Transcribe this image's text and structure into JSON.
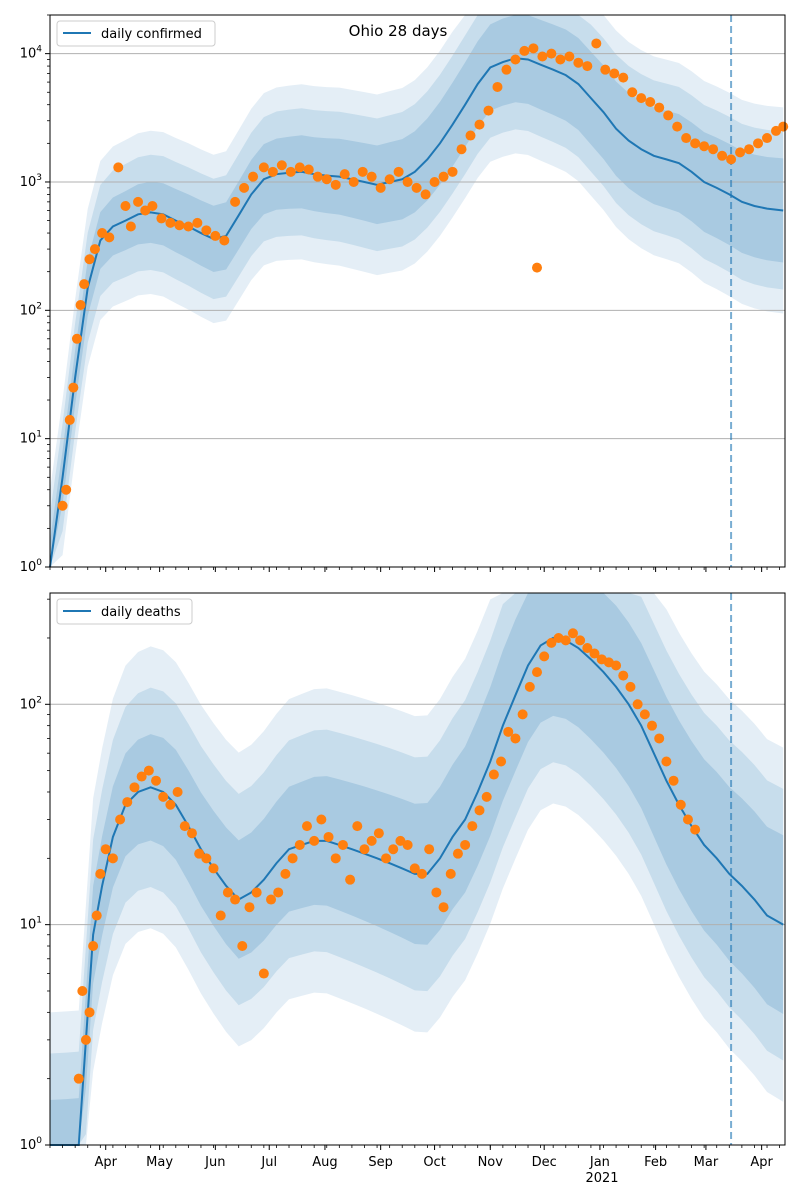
{
  "title": "Ohio 28 days",
  "colors": {
    "model": "#1f77b4",
    "observed": "#ff7f0e",
    "band": "#1f77b4",
    "grid": "#b0b0b0",
    "vline": "#1f77b4"
  },
  "chart_data": [
    {
      "type": "line",
      "title": "Ohio 28 days",
      "xlabel": "",
      "ylabel": "",
      "yscale": "log",
      "ylim": [
        1,
        20000
      ],
      "xlim": [
        "2020-03-01",
        "2021-04-14"
      ],
      "grid": true,
      "legend_position": "top-left",
      "y_ticks": [
        "10^0",
        "10^1",
        "10^2",
        "10^3",
        "10^4"
      ],
      "cutoff_line": "2021-03-15",
      "series": [
        {
          "name": "daily confirmed",
          "style": "line",
          "x": [
            "2020-03-01",
            "2020-03-08",
            "2020-03-15",
            "2020-03-22",
            "2020-03-29",
            "2020-04-05",
            "2020-04-12",
            "2020-04-19",
            "2020-04-26",
            "2020-05-03",
            "2020-05-10",
            "2020-05-17",
            "2020-05-24",
            "2020-05-31",
            "2020-06-07",
            "2020-06-14",
            "2020-06-21",
            "2020-06-28",
            "2020-07-05",
            "2020-07-12",
            "2020-07-19",
            "2020-07-26",
            "2020-08-02",
            "2020-08-09",
            "2020-08-16",
            "2020-08-23",
            "2020-08-30",
            "2020-09-06",
            "2020-09-13",
            "2020-09-20",
            "2020-09-27",
            "2020-10-04",
            "2020-10-11",
            "2020-10-18",
            "2020-10-25",
            "2020-11-01",
            "2020-11-08",
            "2020-11-15",
            "2020-11-22",
            "2020-11-29",
            "2020-12-06",
            "2020-12-13",
            "2020-12-20",
            "2020-12-27",
            "2021-01-03",
            "2021-01-10",
            "2021-01-17",
            "2021-01-24",
            "2021-01-31",
            "2021-02-07",
            "2021-02-14",
            "2021-02-21",
            "2021-02-28",
            "2021-03-07",
            "2021-03-14",
            "2021-03-21",
            "2021-03-28",
            "2021-04-04",
            "2021-04-13"
          ],
          "values": [
            1,
            5,
            30,
            150,
            350,
            450,
            500,
            560,
            580,
            560,
            500,
            450,
            400,
            360,
            380,
            550,
            800,
            1050,
            1150,
            1180,
            1200,
            1150,
            1120,
            1100,
            1050,
            1000,
            950,
            1000,
            1050,
            1200,
            1500,
            2000,
            2800,
            4000,
            5800,
            7800,
            8600,
            9200,
            9000,
            8200,
            7500,
            6800,
            5800,
            4500,
            3500,
            2600,
            2100,
            1800,
            1600,
            1500,
            1400,
            1200,
            1000,
            900,
            800,
            700,
            650,
            620,
            600
          ]
        },
        {
          "name": "",
          "style": "markers",
          "x": [
            "2020-03-08",
            "2020-03-10",
            "2020-03-12",
            "2020-03-14",
            "2020-03-16",
            "2020-03-18",
            "2020-03-20",
            "2020-03-23",
            "2020-03-26",
            "2020-03-30",
            "2020-04-03",
            "2020-04-08",
            "2020-04-12",
            "2020-04-15",
            "2020-04-19",
            "2020-04-23",
            "2020-04-27",
            "2020-05-02",
            "2020-05-07",
            "2020-05-12",
            "2020-05-17",
            "2020-05-22",
            "2020-05-27",
            "2020-06-01",
            "2020-06-06",
            "2020-06-12",
            "2020-06-17",
            "2020-06-22",
            "2020-06-28",
            "2020-07-03",
            "2020-07-08",
            "2020-07-13",
            "2020-07-18",
            "2020-07-23",
            "2020-07-28",
            "2020-08-02",
            "2020-08-07",
            "2020-08-12",
            "2020-08-17",
            "2020-08-22",
            "2020-08-27",
            "2020-09-01",
            "2020-09-06",
            "2020-09-11",
            "2020-09-16",
            "2020-09-21",
            "2020-09-26",
            "2020-10-01",
            "2020-10-06",
            "2020-10-11",
            "2020-10-16",
            "2020-10-21",
            "2020-10-26",
            "2020-10-31",
            "2020-11-05",
            "2020-11-10",
            "2020-11-15",
            "2020-11-20",
            "2020-11-25",
            "2020-11-27",
            "2020-11-30",
            "2020-12-05",
            "2020-12-10",
            "2020-12-15",
            "2020-12-20",
            "2020-12-25",
            "2020-12-30",
            "2021-01-04",
            "2021-01-09",
            "2021-01-14",
            "2021-01-19",
            "2021-01-24",
            "2021-01-29",
            "2021-02-03",
            "2021-02-08",
            "2021-02-13",
            "2021-02-18",
            "2021-02-23",
            "2021-02-28",
            "2021-03-05",
            "2021-03-10",
            "2021-03-15",
            "2021-03-20",
            "2021-03-25",
            "2021-03-30",
            "2021-04-04",
            "2021-04-09",
            "2021-04-13"
          ],
          "values": [
            3,
            4,
            14,
            25,
            60,
            110,
            160,
            250,
            300,
            400,
            370,
            1300,
            650,
            450,
            700,
            600,
            650,
            520,
            480,
            460,
            450,
            480,
            420,
            380,
            350,
            700,
            900,
            1100,
            1300,
            1200,
            1350,
            1200,
            1300,
            1250,
            1100,
            1050,
            950,
            1150,
            1000,
            1200,
            1100,
            900,
            1050,
            1200,
            1000,
            900,
            800,
            1000,
            1100,
            1200,
            1800,
            2300,
            2800,
            3600,
            5500,
            7500,
            9000,
            10500,
            11000,
            215,
            9500,
            10000,
            9000,
            9500,
            8500,
            8000,
            12000,
            7500,
            7000,
            6500,
            5000,
            4500,
            4200,
            3800,
            3300,
            2700,
            2200,
            2000,
            1900,
            1800,
            1600,
            1500,
            1700,
            1800,
            2000,
            2200,
            2500,
            2700
          ]
        }
      ]
    },
    {
      "type": "line",
      "title": "",
      "xlabel": "",
      "ylabel": "",
      "yscale": "log",
      "ylim": [
        1,
        320
      ],
      "xlim": [
        "2020-03-01",
        "2021-04-14"
      ],
      "grid": true,
      "legend_position": "top-left",
      "y_ticks": [
        "10^0",
        "10^1",
        "10^2"
      ],
      "x_tick_labels": [
        "Apr",
        "May",
        "Jun",
        "Jul",
        "Aug",
        "Sep",
        "Oct",
        "Nov",
        "Dec",
        "Jan",
        "Feb",
        "Mar",
        "Apr"
      ],
      "x_tick_dates": [
        "2020-04-01",
        "2020-05-01",
        "2020-06-01",
        "2020-07-01",
        "2020-08-01",
        "2020-09-01",
        "2020-10-01",
        "2020-11-01",
        "2020-12-01",
        "2021-01-01",
        "2021-02-01",
        "2021-03-01",
        "2021-04-01"
      ],
      "x_year_label": "2021",
      "cutoff_line": "2021-03-15",
      "series": [
        {
          "name": "daily deaths",
          "style": "line",
          "x": [
            "2020-03-01",
            "2020-03-10",
            "2020-03-17",
            "2020-03-21",
            "2020-03-25",
            "2020-03-30",
            "2020-04-05",
            "2020-04-12",
            "2020-04-19",
            "2020-04-26",
            "2020-05-03",
            "2020-05-10",
            "2020-05-17",
            "2020-05-24",
            "2020-05-31",
            "2020-06-07",
            "2020-06-14",
            "2020-06-21",
            "2020-06-28",
            "2020-07-05",
            "2020-07-12",
            "2020-07-19",
            "2020-07-26",
            "2020-08-02",
            "2020-08-09",
            "2020-08-16",
            "2020-08-23",
            "2020-08-30",
            "2020-09-06",
            "2020-09-13",
            "2020-09-20",
            "2020-09-27",
            "2020-10-04",
            "2020-10-11",
            "2020-10-18",
            "2020-10-25",
            "2020-11-01",
            "2020-11-08",
            "2020-11-15",
            "2020-11-22",
            "2020-11-29",
            "2020-12-06",
            "2020-12-13",
            "2020-12-20",
            "2020-12-27",
            "2021-01-03",
            "2021-01-10",
            "2021-01-17",
            "2021-01-24",
            "2021-01-31",
            "2021-02-07",
            "2021-02-14",
            "2021-02-21",
            "2021-02-28",
            "2021-03-07",
            "2021-03-14",
            "2021-03-21",
            "2021-03-28",
            "2021-04-04",
            "2021-04-13"
          ],
          "values": [
            1,
            1,
            1,
            3,
            9,
            15,
            25,
            35,
            40,
            42,
            40,
            35,
            28,
            22,
            18,
            15,
            13,
            14,
            16,
            19,
            22,
            23,
            24,
            24,
            23,
            22,
            21,
            20,
            19,
            18,
            17,
            17,
            20,
            25,
            30,
            40,
            55,
            80,
            110,
            150,
            185,
            200,
            195,
            180,
            160,
            140,
            120,
            100,
            80,
            60,
            45,
            35,
            28,
            23,
            20,
            17,
            15,
            13,
            11,
            10
          ]
        },
        {
          "name": "",
          "style": "markers",
          "x": [
            "2020-03-17",
            "2020-03-19",
            "2020-03-21",
            "2020-03-23",
            "2020-03-25",
            "2020-03-27",
            "2020-03-29",
            "2020-04-01",
            "2020-04-05",
            "2020-04-09",
            "2020-04-13",
            "2020-04-17",
            "2020-04-21",
            "2020-04-25",
            "2020-04-29",
            "2020-05-03",
            "2020-05-07",
            "2020-05-11",
            "2020-05-15",
            "2020-05-19",
            "2020-05-23",
            "2020-05-27",
            "2020-05-31",
            "2020-06-04",
            "2020-06-08",
            "2020-06-12",
            "2020-06-16",
            "2020-06-20",
            "2020-06-24",
            "2020-06-28",
            "2020-07-02",
            "2020-07-06",
            "2020-07-10",
            "2020-07-14",
            "2020-07-18",
            "2020-07-22",
            "2020-07-26",
            "2020-07-30",
            "2020-08-03",
            "2020-08-07",
            "2020-08-11",
            "2020-08-15",
            "2020-08-19",
            "2020-08-23",
            "2020-08-27",
            "2020-08-31",
            "2020-09-04",
            "2020-09-08",
            "2020-09-12",
            "2020-09-16",
            "2020-09-20",
            "2020-09-24",
            "2020-09-28",
            "2020-10-02",
            "2020-10-06",
            "2020-10-10",
            "2020-10-14",
            "2020-10-18",
            "2020-10-22",
            "2020-10-26",
            "2020-10-30",
            "2020-11-03",
            "2020-11-07",
            "2020-11-11",
            "2020-11-15",
            "2020-11-19",
            "2020-11-23",
            "2020-11-27",
            "2020-12-01",
            "2020-12-05",
            "2020-12-09",
            "2020-12-13",
            "2020-12-17",
            "2020-12-21",
            "2020-12-25",
            "2020-12-29",
            "2021-01-02",
            "2021-01-06",
            "2021-01-10",
            "2021-01-14",
            "2021-01-18",
            "2021-01-22",
            "2021-01-26",
            "2021-01-30",
            "2021-02-03",
            "2021-02-07",
            "2021-02-11",
            "2021-02-15",
            "2021-02-19",
            "2021-02-23"
          ],
          "values": [
            2,
            5,
            3,
            4,
            8,
            11,
            17,
            22,
            20,
            30,
            36,
            42,
            47,
            50,
            45,
            38,
            35,
            40,
            28,
            26,
            21,
            20,
            18,
            11,
            14,
            13,
            8,
            12,
            14,
            6,
            13,
            14,
            17,
            20,
            23,
            28,
            24,
            30,
            25,
            20,
            23,
            16,
            28,
            22,
            24,
            26,
            20,
            22,
            24,
            23,
            18,
            17,
            22,
            14,
            12,
            17,
            21,
            23,
            28,
            33,
            38,
            48,
            55,
            75,
            70,
            90,
            120,
            140,
            165,
            190,
            200,
            195,
            210,
            195,
            180,
            170,
            160,
            155,
            150,
            135,
            120,
            100,
            90,
            80,
            70,
            55,
            45,
            35,
            30,
            27
          ]
        }
      ]
    }
  ]
}
